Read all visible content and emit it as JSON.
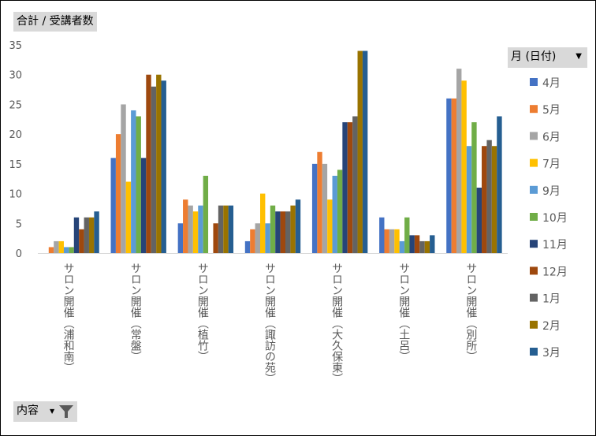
{
  "value_field": "合計 / 受講者数",
  "legend_field": "月 (日付)",
  "axis_field": "内容",
  "chart_data": {
    "type": "bar",
    "ylim": [
      0,
      35
    ],
    "ticks": [
      0,
      5,
      10,
      15,
      20,
      25,
      30,
      35
    ],
    "grid": false,
    "legend_position": "right",
    "categories": [
      "サロン開催（浦和南）",
      "サロン開催（常盤）",
      "サロン開催（植竹）",
      "サロン開催（諏訪の苑）",
      "サロン開催（大久保東）",
      "サロン開催（土呂）",
      "サロン開催（別所）"
    ],
    "series": [
      {
        "name": "4月",
        "color": "#4472c4",
        "values": [
          0,
          16,
          5,
          2,
          15,
          6,
          26
        ]
      },
      {
        "name": "5月",
        "color": "#ed7d31",
        "values": [
          1,
          20,
          9,
          4,
          17,
          4,
          26
        ]
      },
      {
        "name": "6月",
        "color": "#a5a5a5",
        "values": [
          2,
          25,
          8,
          5,
          15,
          4,
          31
        ]
      },
      {
        "name": "7月",
        "color": "#ffc000",
        "values": [
          2,
          12,
          7,
          10,
          9,
          4,
          29
        ]
      },
      {
        "name": "9月",
        "color": "#5b9bd5",
        "values": [
          1,
          24,
          8,
          5,
          13,
          2,
          18
        ]
      },
      {
        "name": "10月",
        "color": "#70ad47",
        "values": [
          1,
          23,
          13,
          8,
          14,
          6,
          22
        ]
      },
      {
        "name": "11月",
        "color": "#264478",
        "values": [
          6,
          16,
          0,
          7,
          22,
          3,
          11
        ]
      },
      {
        "name": "12月",
        "color": "#9e480e",
        "values": [
          4,
          30,
          5,
          7,
          22,
          3,
          18
        ]
      },
      {
        "name": "1月",
        "color": "#636363",
        "values": [
          6,
          28,
          8,
          7,
          23,
          2,
          19
        ]
      },
      {
        "name": "2月",
        "color": "#997300",
        "values": [
          6,
          30,
          8,
          8,
          34,
          2,
          18
        ]
      },
      {
        "name": "3月",
        "color": "#255e91",
        "values": [
          7,
          29,
          8,
          9,
          34,
          3,
          23
        ]
      }
    ]
  }
}
